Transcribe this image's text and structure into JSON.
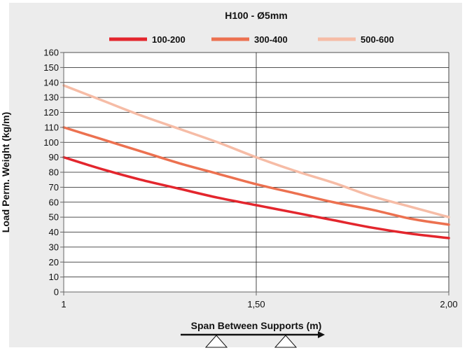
{
  "chart_data": {
    "type": "line",
    "title": "H100 - Ø5mm",
    "xlabel": "Span Between Supports (m)",
    "ylabel": "Load Perm. Weight (kg/m)",
    "xlim": [
      1,
      2
    ],
    "ylim": [
      0,
      160
    ],
    "x_ticks": [
      {
        "value": 1,
        "label": "1"
      },
      {
        "value": 1.5,
        "label": "1,50"
      },
      {
        "value": 2,
        "label": "2,00"
      }
    ],
    "y_ticks": [
      0,
      10,
      20,
      30,
      40,
      50,
      60,
      70,
      80,
      90,
      100,
      110,
      120,
      130,
      140,
      150,
      160
    ],
    "grid": "horizontal lines every 10; vertical line at 1,50",
    "legend_position": "top",
    "background": "#ececec",
    "series": [
      {
        "name": "100-200",
        "color": "#e3262d",
        "x": [
          1,
          1.1,
          1.2,
          1.3,
          1.4,
          1.5,
          1.6,
          1.7,
          1.8,
          1.9,
          2
        ],
        "y": [
          90,
          82,
          75,
          69,
          63,
          58,
          53,
          48,
          43,
          39,
          36
        ]
      },
      {
        "name": "300-400",
        "color": "#ec7150",
        "x": [
          1,
          1.1,
          1.2,
          1.3,
          1.4,
          1.5,
          1.6,
          1.7,
          1.8,
          1.9,
          2
        ],
        "y": [
          110,
          102,
          94,
          86,
          79,
          72,
          66,
          60,
          55,
          49,
          45
        ]
      },
      {
        "name": "500-600",
        "color": "#f6bca6",
        "x": [
          1,
          1.1,
          1.2,
          1.3,
          1.4,
          1.5,
          1.6,
          1.7,
          1.8,
          1.9,
          2
        ],
        "y": [
          138,
          128,
          118,
          109,
          100,
          90,
          81,
          73,
          64,
          57,
          50
        ]
      }
    ]
  }
}
